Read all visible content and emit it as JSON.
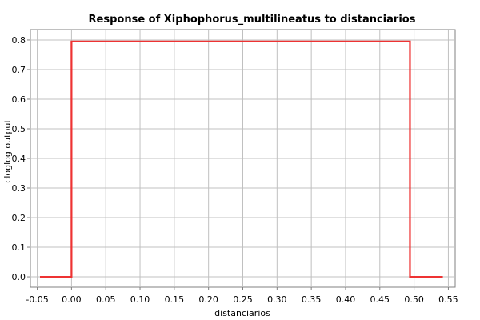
{
  "chart_data": {
    "type": "line",
    "title": "Response of Xiphophorus_multilineatus to distanciarios",
    "xlabel": "distanciarios",
    "ylabel": "cloglog output",
    "xlim": [
      -0.06,
      0.56
    ],
    "ylim": [
      -0.035,
      0.835
    ],
    "grid": true,
    "x_ticks": [
      -0.05,
      0.0,
      0.05,
      0.1,
      0.15,
      0.2,
      0.25,
      0.3,
      0.35,
      0.4,
      0.45,
      0.5,
      0.55
    ],
    "x_tick_labels": [
      "-0.05",
      "0.00",
      "0.05",
      "0.10",
      "0.15",
      "0.20",
      "0.25",
      "0.30",
      "0.35",
      "0.40",
      "0.45",
      "0.50",
      "0.55"
    ],
    "y_ticks": [
      0.0,
      0.1,
      0.2,
      0.3,
      0.4,
      0.5,
      0.6,
      0.7,
      0.8
    ],
    "y_tick_labels": [
      "0.0",
      "0.1",
      "0.2",
      "0.3",
      "0.4",
      "0.5",
      "0.6",
      "0.7",
      "0.8"
    ],
    "series": [
      {
        "color": "#ee3333",
        "x": [
          -0.046,
          0.0,
          0.0,
          0.494,
          0.494,
          0.542
        ],
        "y": [
          0.0,
          0.0,
          0.795,
          0.795,
          0.0,
          0.0
        ]
      }
    ]
  }
}
